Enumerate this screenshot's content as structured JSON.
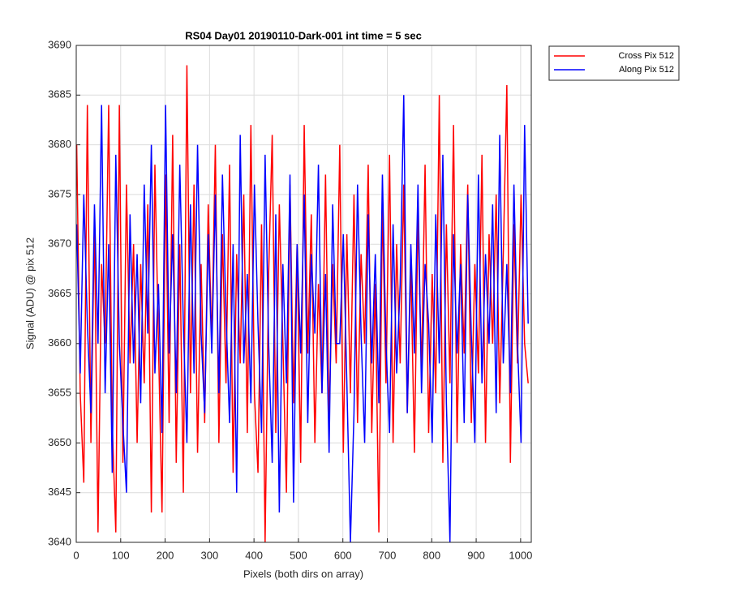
{
  "chart_data": {
    "type": "line",
    "title": "RS04 Day01 20190110-Dark-001 int time = 5 sec",
    "x_label": "Pixels (both dirs on array)",
    "y_label": "Signal (ADU) @ pix 512",
    "xlim": [
      0,
      1024
    ],
    "ylim": [
      3640,
      3690
    ],
    "xticks": [
      0,
      100,
      200,
      300,
      400,
      500,
      600,
      700,
      800,
      900,
      1000
    ],
    "yticks": [
      3640,
      3645,
      3650,
      3655,
      3660,
      3665,
      3670,
      3675,
      3680,
      3685,
      3690
    ],
    "grid": true,
    "legend": "northeastoutside",
    "x": [
      1,
      9,
      17,
      25,
      33,
      41,
      49,
      57,
      65,
      73,
      81,
      89,
      97,
      105,
      113,
      121,
      129,
      137,
      145,
      153,
      161,
      169,
      177,
      185,
      193,
      201,
      209,
      217,
      225,
      233,
      241,
      249,
      257,
      265,
      273,
      281,
      289,
      297,
      305,
      313,
      321,
      329,
      337,
      345,
      353,
      361,
      369,
      377,
      385,
      393,
      401,
      409,
      417,
      425,
      433,
      441,
      449,
      457,
      465,
      473,
      481,
      489,
      497,
      505,
      513,
      521,
      529,
      537,
      545,
      553,
      561,
      569,
      577,
      585,
      593,
      601,
      609,
      617,
      625,
      633,
      641,
      649,
      657,
      665,
      673,
      681,
      689,
      697,
      705,
      713,
      721,
      729,
      737,
      745,
      753,
      761,
      769,
      777,
      785,
      793,
      801,
      809,
      817,
      825,
      833,
      841,
      849,
      857,
      865,
      873,
      881,
      889,
      897,
      905,
      913,
      921,
      929,
      937,
      945,
      953,
      961,
      969,
      977,
      985,
      993,
      1001,
      1009,
      1017
    ],
    "series": [
      {
        "name": "Cross Pix 512",
        "color": "#ff0000",
        "values": [
          3680,
          3655,
          3646,
          3684,
          3650,
          3672,
          3641,
          3668,
          3660,
          3684,
          3652,
          3641,
          3684,
          3648,
          3676,
          3658,
          3670,
          3650,
          3668,
          3656,
          3674,
          3643,
          3678,
          3660,
          3643,
          3677,
          3652,
          3681,
          3648,
          3670,
          3645,
          3688,
          3655,
          3676,
          3649,
          3668,
          3652,
          3674,
          3660,
          3680,
          3650,
          3671,
          3656,
          3678,
          3647,
          3669,
          3658,
          3675,
          3651,
          3682,
          3655,
          3647,
          3672,
          3640,
          3667,
          3681,
          3651,
          3674,
          3660,
          3645,
          3676,
          3654,
          3670,
          3648,
          3682,
          3659,
          3673,
          3650,
          3666,
          3655,
          3677,
          3652,
          3668,
          3658,
          3680,
          3649,
          3671,
          3655,
          3675,
          3652,
          3669,
          3660,
          3678,
          3651,
          3666,
          3641,
          3674,
          3656,
          3679,
          3650,
          3670,
          3658,
          3676,
          3653,
          3668,
          3649,
          3673,
          3657,
          3678,
          3651,
          3667,
          3655,
          3685,
          3648,
          3672,
          3656,
          3682,
          3650,
          3670,
          3659,
          3676,
          3652,
          3668,
          3657,
          3679,
          3650,
          3671,
          3660,
          3675,
          3654,
          3669,
          3686,
          3648,
          3672,
          3658,
          3675,
          3660,
          3656
        ]
      },
      {
        "name": "Along Pix 512",
        "color": "#0000ff",
        "values": [
          3672,
          3657,
          3675,
          3662,
          3653,
          3674,
          3660,
          3684,
          3655,
          3670,
          3647,
          3679,
          3660,
          3652,
          3645,
          3673,
          3658,
          3669,
          3654,
          3676,
          3661,
          3680,
          3657,
          3666,
          3651,
          3684,
          3659,
          3671,
          3655,
          3678,
          3662,
          3650,
          3674,
          3657,
          3680,
          3661,
          3653,
          3671,
          3659,
          3675,
          3655,
          3677,
          3663,
          3652,
          3670,
          3645,
          3681,
          3658,
          3667,
          3654,
          3676,
          3662,
          3651,
          3679,
          3660,
          3648,
          3673,
          3643,
          3668,
          3656,
          3677,
          3644,
          3670,
          3659,
          3675,
          3652,
          3669,
          3661,
          3678,
          3655,
          3667,
          3649,
          3674,
          3660,
          3660,
          3671,
          3656,
          3640,
          3653,
          3676,
          3661,
          3650,
          3673,
          3658,
          3669,
          3654,
          3677,
          3660,
          3651,
          3672,
          3657,
          3666,
          3685,
          3653,
          3670,
          3659,
          3676,
          3655,
          3668,
          3662,
          3650,
          3673,
          3658,
          3679,
          3654,
          3640,
          3671,
          3659,
          3668,
          3652,
          3675,
          3661,
          3650,
          3677,
          3656,
          3669,
          3660,
          3674,
          3653,
          3681,
          3658,
          3668,
          3655,
          3676,
          3660,
          3650,
          3682,
          3662
        ]
      }
    ]
  }
}
